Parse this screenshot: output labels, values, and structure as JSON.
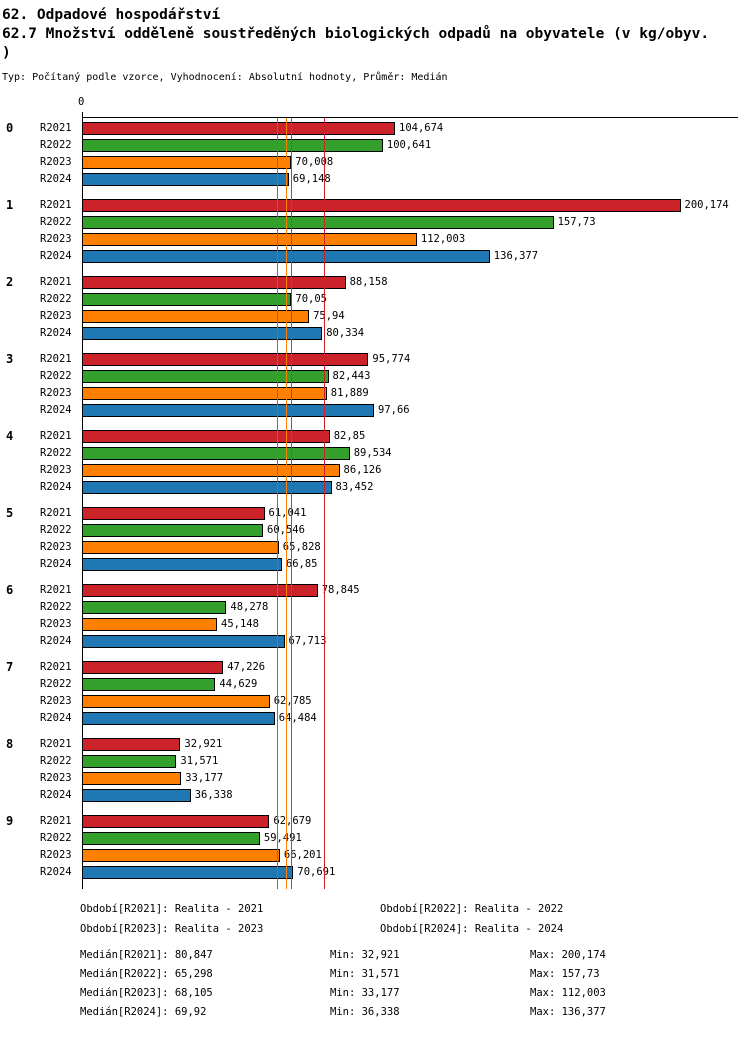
{
  "header": {
    "title": "62. Odpadové hospodářství",
    "subtitle_line1": "62.7 Množství odděleně soustředěných biologických odpadů na obyvatele (v kg/obyv.",
    "subtitle_line2": ")",
    "meta": "Typ: Počítaný podle vzorce, Vyhodnocení: Absolutní hodnoty, Průměr: Medián"
  },
  "chart_data": {
    "type": "bar",
    "orientation": "horizontal",
    "unit": "kg/obyv.",
    "axis": {
      "origin_label": "0",
      "xlim": [
        0,
        219
      ],
      "grid": false
    },
    "categories": [
      "0",
      "1",
      "2",
      "3",
      "4",
      "5",
      "6",
      "7",
      "8",
      "9"
    ],
    "series": [
      {
        "name": "R2021",
        "color": "#cc2229",
        "median": 80.847,
        "values": [
          104.674,
          200.174,
          88.158,
          95.774,
          82.85,
          61.041,
          78.845,
          47.226,
          32.921,
          62.679
        ],
        "value_labels": [
          "104,674",
          "200,174",
          "88,158",
          "95,774",
          "82,85",
          "61,041",
          "78,845",
          "47,226",
          "32,921",
          "62,679"
        ]
      },
      {
        "name": "R2022",
        "color": "#33a02c",
        "median": 65.298,
        "values": [
          100.641,
          157.73,
          70.05,
          82.443,
          89.534,
          60.546,
          48.278,
          44.629,
          31.571,
          59.491
        ],
        "value_labels": [
          "100,641",
          "157,73",
          "70,05",
          "82,443",
          "89,534",
          "60,546",
          "48,278",
          "44,629",
          "31,571",
          "59,491"
        ]
      },
      {
        "name": "R2023",
        "color": "#ff7f00",
        "median": 68.105,
        "values": [
          70.008,
          112.003,
          75.94,
          81.889,
          86.126,
          65.828,
          45.148,
          62.785,
          33.177,
          66.201
        ],
        "value_labels": [
          "70,008",
          "112,003",
          "75,94",
          "81,889",
          "86,126",
          "65,828",
          "45,148",
          "62,785",
          "33,177",
          "66,201"
        ]
      },
      {
        "name": "R2024",
        "color": "#1f78b4",
        "median": 69.92,
        "values": [
          69.148,
          136.377,
          80.334,
          97.66,
          83.452,
          66.85,
          67.713,
          64.484,
          36.338,
          70.691
        ],
        "value_labels": [
          "69,148",
          "136,377",
          "80,334",
          "97,66",
          "83,452",
          "66,85",
          "67,713",
          "64,484",
          "36,338",
          "70,691"
        ]
      }
    ],
    "legend": [
      "Období[R2021]: Realita - 2021",
      "Období[R2022]: Realita - 2022",
      "Období[R2023]: Realita - 2023",
      "Období[R2024]: Realita - 2024"
    ],
    "stats": [
      {
        "median": "Medián[R2021]: 80,847",
        "min": "Min: 32,921",
        "max": "Max: 200,174"
      },
      {
        "median": "Medián[R2022]: 65,298",
        "min": "Min: 31,571",
        "max": "Max: 157,73"
      },
      {
        "median": "Medián[R2023]: 68,105",
        "min": "Min: 33,177",
        "max": "Max: 112,003"
      },
      {
        "median": "Medián[R2024]: 69,92",
        "min": "Min: 36,338",
        "max": "Max: 136,377"
      }
    ]
  }
}
